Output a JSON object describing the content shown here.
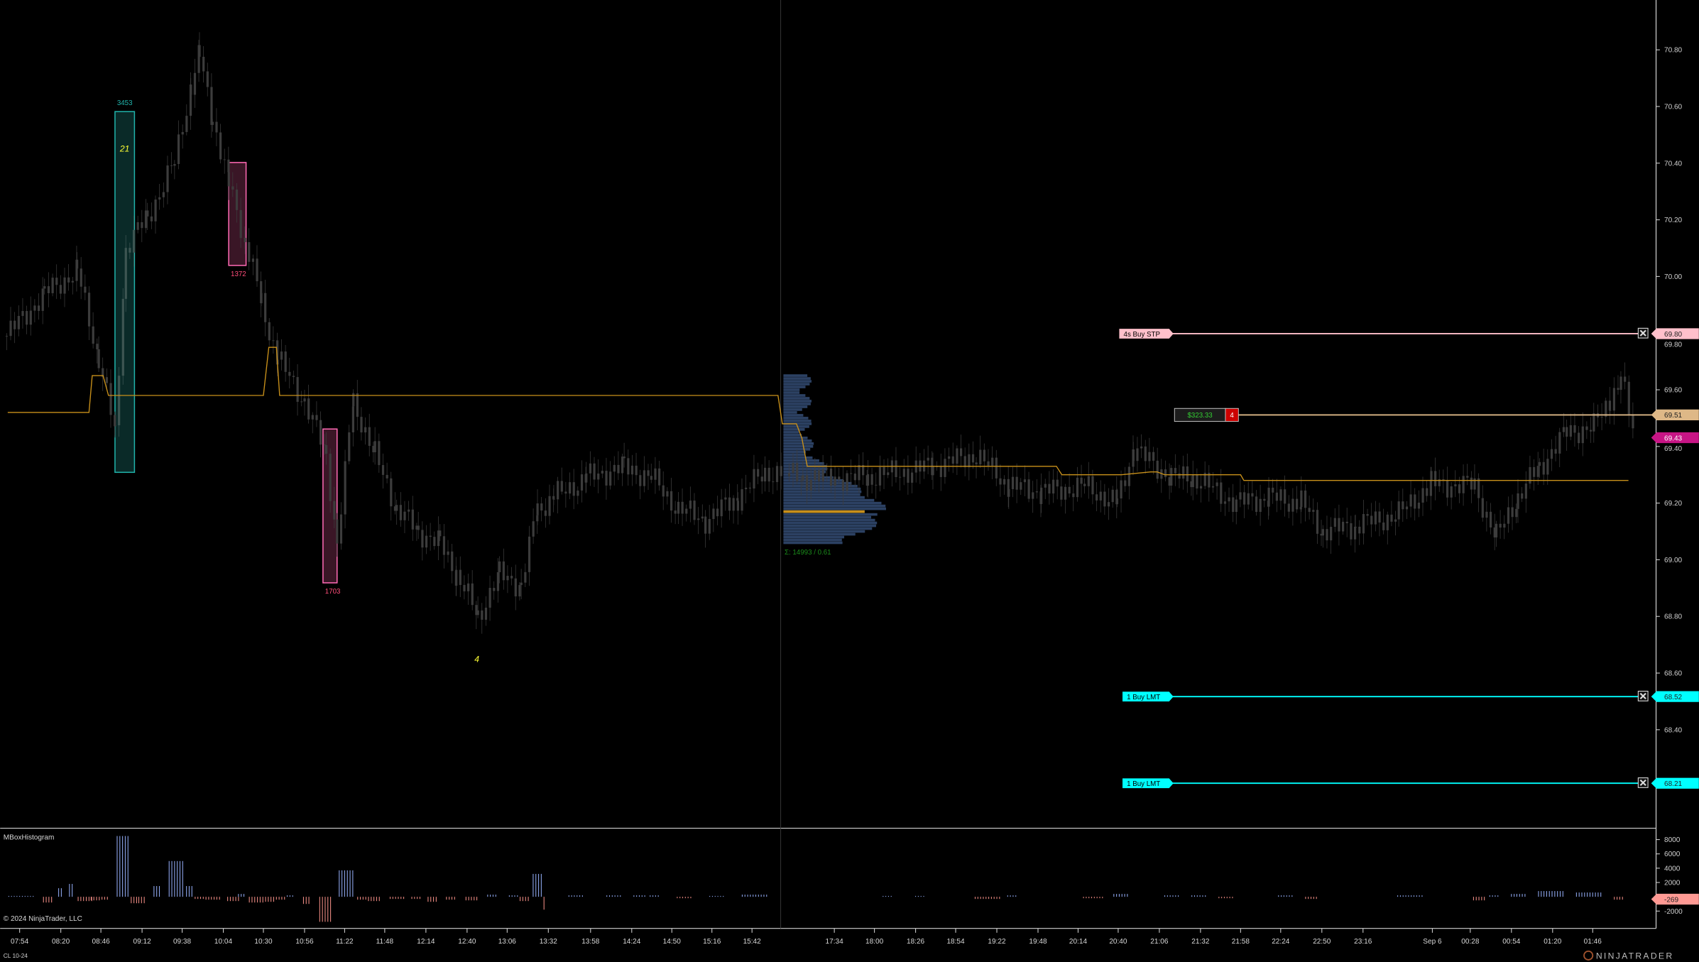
{
  "instrument": "CL 10-24",
  "copyright": "© 2024 NinjaTrader, LLC",
  "logo": "NINJATRADER",
  "last_price": "69.43",
  "colors": {
    "background": "#000000",
    "candle": "#3c3c3c",
    "vwap_line": "#c8901a",
    "profile": "#2c4163",
    "poc": "#c8901a",
    "buy_box": "#20b2aa",
    "sell_box": "#ff69b4",
    "stop_order": "#ffc0cb",
    "limit_order": "#00ffff",
    "position": "#deb887",
    "last_price_tag": "#c71585",
    "hist_up": "#8fa8f0",
    "hist_down": "#f08c84"
  },
  "orders": [
    {
      "label": "4s  Buy STP",
      "price": "69.80",
      "color": "#ffc0cb"
    },
    {
      "label": "1  Buy LMT",
      "price": "68.52",
      "color": "#00ffff"
    },
    {
      "label": "1  Buy LMT",
      "price": "68.21",
      "color": "#00ffff"
    }
  ],
  "position": {
    "pnl": "$323.33",
    "quantity": "4",
    "price": "69.51"
  },
  "box_labels": {
    "teal_box": "3453",
    "pink_box_1": "1372",
    "pink_box_2": "1703"
  },
  "markers": {
    "marker_1": "21",
    "marker_2": "4"
  },
  "volume_profile": {
    "summary": "Σ: 14993 / 0.61",
    "poc": 69.17,
    "high": 69.65,
    "low": 69.05
  },
  "indicator_panel": {
    "title": "MBoxHistogram",
    "current_value": "-269",
    "ticks": [
      {
        "label": "8000",
        "v": 8000
      },
      {
        "label": "6000",
        "v": 6000
      },
      {
        "label": "4000",
        "v": 4000
      },
      {
        "label": "2000",
        "v": 2000
      },
      {
        "label": "-2000",
        "v": -2000
      }
    ],
    "clusters": [
      {
        "value": 100,
        "count": 10
      },
      {
        "value": -800,
        "count": 4
      },
      {
        "value": 1200,
        "count": 2
      },
      {
        "value": 1800,
        "count": 2
      },
      {
        "value": -600,
        "count": 6
      },
      {
        "value": -500,
        "count": 4
      },
      {
        "value": -400,
        "count": 3
      },
      {
        "value": 8500,
        "count": 5
      },
      {
        "value": -900,
        "count": 3
      },
      {
        "value": -900,
        "count": 3
      },
      {
        "value": 1500,
        "count": 3
      },
      {
        "value": 5000,
        "count": 6
      },
      {
        "value": 1500,
        "count": 3
      },
      {
        "value": -300,
        "count": 4
      },
      {
        "value": -400,
        "count": 6
      },
      {
        "value": -600,
        "count": 5
      },
      {
        "value": 400,
        "count": 3
      },
      {
        "value": -800,
        "count": 6
      },
      {
        "value": -700,
        "count": 4
      },
      {
        "value": -400,
        "count": 4
      },
      {
        "value": 200,
        "count": 3
      },
      {
        "value": -1000,
        "count": 3
      },
      {
        "value": -3500,
        "count": 5
      },
      {
        "value": 3700,
        "count": 6
      },
      {
        "value": -400,
        "count": 4
      },
      {
        "value": -600,
        "count": 5
      },
      {
        "value": -300,
        "count": 6
      },
      {
        "value": -300,
        "count": 4
      },
      {
        "value": -700,
        "count": 4
      },
      {
        "value": -400,
        "count": 4
      },
      {
        "value": -500,
        "count": 5
      },
      {
        "value": 300,
        "count": 4
      },
      {
        "value": 200,
        "count": 4
      },
      {
        "value": -600,
        "count": 4
      },
      {
        "value": 3200,
        "count": 4
      },
      {
        "value": -1800,
        "count": 1
      },
      {
        "value": 200,
        "count": 6
      },
      {
        "value": 200,
        "count": 6
      },
      {
        "value": 200,
        "count": 5
      },
      {
        "value": 200,
        "count": 4
      },
      {
        "value": -200,
        "count": 6
      },
      {
        "value": 100,
        "count": 6
      },
      {
        "value": 300,
        "count": 10
      },
      {
        "value": 100,
        "count": 4
      },
      {
        "value": 100,
        "count": 4
      },
      {
        "value": -300,
        "count": 10
      },
      {
        "value": 200,
        "count": 4
      },
      {
        "value": -200,
        "count": 8
      },
      {
        "value": 400,
        "count": 6
      },
      {
        "value": 200,
        "count": 6
      },
      {
        "value": 200,
        "count": 6
      },
      {
        "value": -200,
        "count": 6
      },
      {
        "value": 200,
        "count": 6
      },
      {
        "value": -300,
        "count": 5
      },
      {
        "value": 200,
        "count": 10
      },
      {
        "value": -500,
        "count": 5
      },
      {
        "value": 200,
        "count": 4
      },
      {
        "value": 400,
        "count": 6
      },
      {
        "value": 800,
        "count": 10
      },
      {
        "value": 600,
        "count": 10
      },
      {
        "value": -400,
        "count": 4
      }
    ]
  },
  "chart_data": {
    "type": "candlestick",
    "price_ticks": [
      "70.80",
      "70.60",
      "70.40",
      "70.20",
      "70.00",
      "69.80",
      "69.60",
      "69.40",
      "69.20",
      "69.00",
      "68.80",
      "68.60",
      "68.40"
    ],
    "time_ticks": [
      "07:54",
      "08:20",
      "08:46",
      "09:12",
      "09:38",
      "10:04",
      "10:30",
      "10:56",
      "11:22",
      "11:48",
      "12:14",
      "12:40",
      "13:06",
      "13:32",
      "13:58",
      "14:24",
      "14:50",
      "15:16",
      "15:42",
      "17:34",
      "18:00",
      "18:26",
      "18:54",
      "19:22",
      "19:48",
      "20:14",
      "20:40",
      "21:06",
      "21:32",
      "21:58",
      "22:24",
      "22:50",
      "23:16",
      "Sep 6",
      "00:28",
      "00:54",
      "01:20",
      "01:46"
    ],
    "ylim": [
      68.2,
      70.9
    ],
    "close_path": [
      69.79,
      69.94,
      70.02,
      69.71,
      69.45,
      70.1,
      70.21,
      70.4,
      70.67,
      70.78,
      70.56,
      70.33,
      70.13,
      69.91,
      69.71,
      69.56,
      69.37,
      69.06,
      69.56,
      69.37,
      69.18,
      69.1,
      69.06,
      68.95,
      68.8,
      68.95,
      68.91,
      69.18,
      69.22,
      69.29,
      69.33,
      69.29,
      69.18,
      69.14,
      69.22,
      69.31,
      69.29,
      69.29,
      69.33,
      69.37,
      69.26,
      69.24,
      69.26,
      69.2,
      69.39,
      69.29,
      69.29,
      69.2,
      69.22,
      69.2,
      69.1,
      69.12,
      69.16,
      69.27,
      69.26,
      69.08,
      69.22,
      69.33,
      69.45,
      69.47,
      69.56,
      69.64,
      69.43
    ],
    "vwap_steps": [
      69.52,
      69.65,
      69.58,
      69.75,
      69.58,
      69.48,
      69.43,
      69.33,
      69.33,
      69.3,
      69.31,
      69.3,
      69.28
    ]
  }
}
